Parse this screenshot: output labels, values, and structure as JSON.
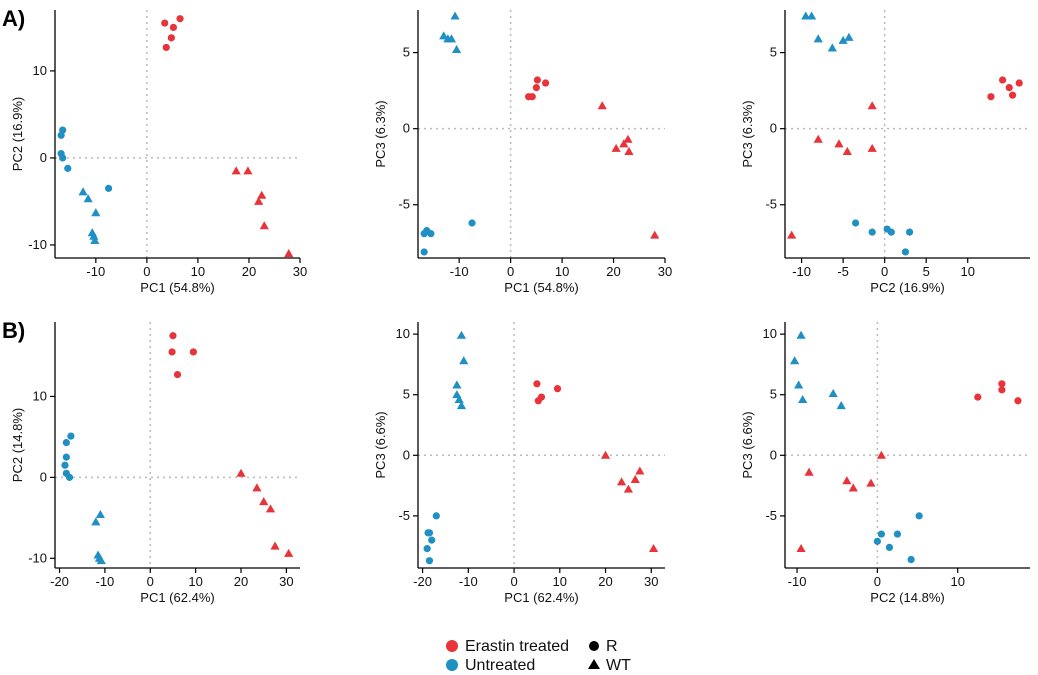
{
  "panels": [
    {
      "label": "A)",
      "row": 0
    },
    {
      "label": "B)",
      "row": 1
    }
  ],
  "colors": {
    "erastin": "#e8333a",
    "untreated": "#1f8fc4",
    "axis": "#000000",
    "ref_line": "#bbbbbb"
  },
  "legend": {
    "color_entries": [
      {
        "label": "Erastin treated",
        "color": "#e8333a"
      },
      {
        "label": "Untreated",
        "color": "#1f8fc4"
      }
    ],
    "shape_entries": [
      {
        "label": "R",
        "shape": "circle"
      },
      {
        "label": "WT",
        "shape": "triangle"
      }
    ]
  },
  "chart_data": [
    {
      "type": "scatter",
      "row": 0,
      "col": 0,
      "xlabel": "PC1 (54.8%)",
      "ylabel": "PC2 (16.9%)",
      "xlim": [
        -18,
        30
      ],
      "ylim": [
        -11.5,
        17
      ],
      "xticks": [
        -10,
        0,
        10,
        20,
        30
      ],
      "yticks": [
        -10,
        0,
        10
      ],
      "series": [
        {
          "name": "Erastin treated R",
          "group": "erastin",
          "shape": "circle",
          "points": [
            [
              3.5,
              15.5
            ],
            [
              5.2,
              15
            ],
            [
              6.5,
              16
            ],
            [
              3.8,
              12.7
            ],
            [
              4.8,
              13.8
            ]
          ]
        },
        {
          "name": "Erastin treated WT",
          "group": "erastin",
          "shape": "triangle",
          "points": [
            [
              17.5,
              -1.5
            ],
            [
              19.8,
              -1.5
            ],
            [
              22.5,
              -4.3
            ],
            [
              21.9,
              -5
            ],
            [
              23,
              -7.8
            ],
            [
              27.8,
              -11
            ]
          ]
        },
        {
          "name": "Untreated R",
          "group": "untreated",
          "shape": "circle",
          "points": [
            [
              -16.5,
              3.2
            ],
            [
              -16.8,
              2.6
            ],
            [
              -16.8,
              0.5
            ],
            [
              -16.5,
              0
            ],
            [
              -15.5,
              -1.2
            ],
            [
              -7.5,
              -3.5
            ]
          ]
        },
        {
          "name": "Untreated WT",
          "group": "untreated",
          "shape": "triangle",
          "points": [
            [
              -12.5,
              -3.9
            ],
            [
              -11.5,
              -4.7
            ],
            [
              -10,
              -6.3
            ],
            [
              -10.7,
              -8.6
            ],
            [
              -10.4,
              -9
            ],
            [
              -10.2,
              -9.5
            ]
          ]
        }
      ]
    },
    {
      "type": "scatter",
      "row": 0,
      "col": 1,
      "xlabel": "PC1 (54.8%)",
      "ylabel": "PC3 (6.3%)",
      "xlim": [
        -18,
        30
      ],
      "ylim": [
        -8.5,
        7.8
      ],
      "xticks": [
        -10,
        0,
        10,
        20,
        30
      ],
      "yticks": [
        -5,
        0,
        5
      ],
      "series": [
        {
          "name": "Erastin treated R",
          "group": "erastin",
          "shape": "circle",
          "points": [
            [
              3.5,
              2.1
            ],
            [
              4.2,
              2.1
            ],
            [
              5.2,
              3.2
            ],
            [
              5,
              2.7
            ],
            [
              6.8,
              3
            ]
          ]
        },
        {
          "name": "Erastin treated WT",
          "group": "erastin",
          "shape": "triangle",
          "points": [
            [
              17.8,
              1.5
            ],
            [
              20.5,
              -1.3
            ],
            [
              22,
              -1
            ],
            [
              22.8,
              -0.7
            ],
            [
              23,
              -1.5
            ],
            [
              28,
              -7
            ]
          ]
        },
        {
          "name": "Untreated R",
          "group": "untreated",
          "shape": "circle",
          "points": [
            [
              -16.8,
              -6.9
            ],
            [
              -16.3,
              -6.7
            ],
            [
              -15.5,
              -6.9
            ],
            [
              -16.8,
              -8.1
            ],
            [
              -7.5,
              -6.2
            ]
          ]
        },
        {
          "name": "Untreated WT",
          "group": "untreated",
          "shape": "triangle",
          "points": [
            [
              -13,
              6.1
            ],
            [
              -12.2,
              5.9
            ],
            [
              -11.5,
              5.9
            ],
            [
              -10.5,
              5.2
            ],
            [
              -10.8,
              7.4
            ]
          ]
        }
      ]
    },
    {
      "type": "scatter",
      "row": 0,
      "col": 2,
      "xlabel": "PC2 (16.9%)",
      "ylabel": "PC3 (6.3%)",
      "xlim": [
        -12,
        17.5
      ],
      "ylim": [
        -8.5,
        7.8
      ],
      "xticks": [
        -10,
        -5,
        0,
        5,
        10
      ],
      "yticks": [
        -5,
        0,
        5
      ],
      "series": [
        {
          "name": "Erastin treated R",
          "group": "erastin",
          "shape": "circle",
          "points": [
            [
              12.8,
              2.1
            ],
            [
              14.2,
              3.2
            ],
            [
              15,
              2.7
            ],
            [
              15.4,
              2.2
            ],
            [
              16.2,
              3
            ]
          ]
        },
        {
          "name": "Erastin treated WT",
          "group": "erastin",
          "shape": "triangle",
          "points": [
            [
              -1.5,
              1.5
            ],
            [
              -8,
              -0.7
            ],
            [
              -5.5,
              -1
            ],
            [
              -4.5,
              -1.5
            ],
            [
              -1.5,
              -1.3
            ],
            [
              -11.2,
              -7
            ]
          ]
        },
        {
          "name": "Untreated R",
          "group": "untreated",
          "shape": "circle",
          "points": [
            [
              -3.5,
              -6.2
            ],
            [
              -1.5,
              -6.8
            ],
            [
              0.3,
              -6.6
            ],
            [
              0.8,
              -6.8
            ],
            [
              2.5,
              -8.1
            ],
            [
              3,
              -6.8
            ]
          ]
        },
        {
          "name": "Untreated WT",
          "group": "untreated",
          "shape": "triangle",
          "points": [
            [
              -9.5,
              7.4
            ],
            [
              -8.8,
              7.4
            ],
            [
              -8,
              5.9
            ],
            [
              -6.3,
              5.3
            ],
            [
              -5,
              5.8
            ],
            [
              -4.3,
              6
            ]
          ]
        }
      ]
    },
    {
      "type": "scatter",
      "row": 1,
      "col": 0,
      "xlabel": "PC1 (62.4%)",
      "ylabel": "PC2 (14.8%)",
      "xlim": [
        -21,
        33
      ],
      "ylim": [
        -11.2,
        19.2
      ],
      "xticks": [
        -20,
        -10,
        0,
        10,
        20,
        30
      ],
      "yticks": [
        -10,
        0,
        10
      ],
      "series": [
        {
          "name": "Erastin treated R",
          "group": "erastin",
          "shape": "circle",
          "points": [
            [
              5,
              17.5
            ],
            [
              4.8,
              15.5
            ],
            [
              9.5,
              15.5
            ],
            [
              6,
              12.7
            ]
          ]
        },
        {
          "name": "Erastin treated WT",
          "group": "erastin",
          "shape": "triangle",
          "points": [
            [
              20,
              0.5
            ],
            [
              23.5,
              -1.3
            ],
            [
              25,
              -3
            ],
            [
              26.5,
              -3.9
            ],
            [
              27.5,
              -8.5
            ],
            [
              30.5,
              -9.4
            ]
          ]
        },
        {
          "name": "Untreated R",
          "group": "untreated",
          "shape": "circle",
          "points": [
            [
              -18.5,
              4.3
            ],
            [
              -17.5,
              5.1
            ],
            [
              -18.5,
              2.5
            ],
            [
              -18.8,
              1.5
            ],
            [
              -18.5,
              0.5
            ],
            [
              -17.8,
              0
            ]
          ]
        },
        {
          "name": "Untreated WT",
          "group": "untreated",
          "shape": "triangle",
          "points": [
            [
              -11,
              -4.6
            ],
            [
              -12,
              -5.5
            ],
            [
              -11.5,
              -9.6
            ],
            [
              -11.2,
              -10
            ],
            [
              -10.8,
              -10.3
            ]
          ]
        }
      ]
    },
    {
      "type": "scatter",
      "row": 1,
      "col": 1,
      "xlabel": "PC1 (62.4%)",
      "ylabel": "PC3 (6.6%)",
      "xlim": [
        -21,
        33
      ],
      "ylim": [
        -9.3,
        11
      ],
      "xticks": [
        -20,
        -10,
        0,
        10,
        20,
        30
      ],
      "yticks": [
        -5,
        0,
        5,
        10
      ],
      "series": [
        {
          "name": "Erastin treated R",
          "group": "erastin",
          "shape": "circle",
          "points": [
            [
              5,
              5.9
            ],
            [
              5.3,
              4.5
            ],
            [
              6,
              4.8
            ],
            [
              9.5,
              5.5
            ]
          ]
        },
        {
          "name": "Erastin treated WT",
          "group": "erastin",
          "shape": "triangle",
          "points": [
            [
              20,
              0
            ],
            [
              23.5,
              -2.2
            ],
            [
              25,
              -2.8
            ],
            [
              26.5,
              -2
            ],
            [
              27.5,
              -1.3
            ],
            [
              30.5,
              -7.7
            ]
          ]
        },
        {
          "name": "Untreated R",
          "group": "untreated",
          "shape": "circle",
          "points": [
            [
              -17,
              -5
            ],
            [
              -18.5,
              -6.4
            ],
            [
              -18,
              -7
            ],
            [
              -19,
              -7.7
            ],
            [
              -18.5,
              -8.7
            ],
            [
              -18.8,
              -6.4
            ]
          ]
        },
        {
          "name": "Untreated WT",
          "group": "untreated",
          "shape": "triangle",
          "points": [
            [
              -11.5,
              9.9
            ],
            [
              -11,
              7.8
            ],
            [
              -12.5,
              5.8
            ],
            [
              -12.5,
              5
            ],
            [
              -12,
              4.6
            ],
            [
              -11.5,
              4.1
            ]
          ]
        }
      ]
    },
    {
      "type": "scatter",
      "row": 1,
      "col": 2,
      "xlabel": "PC2 (14.8%)",
      "ylabel": "PC3 (6.6%)",
      "xlim": [
        -11.5,
        19
      ],
      "ylim": [
        -9.3,
        11
      ],
      "xticks": [
        -10,
        0,
        10
      ],
      "yticks": [
        -5,
        0,
        5,
        10
      ],
      "series": [
        {
          "name": "Erastin treated R",
          "group": "erastin",
          "shape": "circle",
          "points": [
            [
              12.5,
              4.8
            ],
            [
              15.5,
              5.4
            ],
            [
              15.5,
              5.9
            ],
            [
              17.5,
              4.5
            ]
          ]
        },
        {
          "name": "Erastin treated WT",
          "group": "erastin",
          "shape": "triangle",
          "points": [
            [
              0.5,
              0
            ],
            [
              -8.5,
              -1.4
            ],
            [
              -3.8,
              -2.1
            ],
            [
              -3,
              -2.7
            ],
            [
              -0.8,
              -2.3
            ],
            [
              -9.5,
              -7.7
            ]
          ]
        },
        {
          "name": "Untreated R",
          "group": "untreated",
          "shape": "circle",
          "points": [
            [
              0.5,
              -6.5
            ],
            [
              0,
              -7.1
            ],
            [
              1.5,
              -7.6
            ],
            [
              2.5,
              -6.5
            ],
            [
              4.2,
              -8.6
            ],
            [
              5.2,
              -5
            ]
          ]
        },
        {
          "name": "Untreated WT",
          "group": "untreated",
          "shape": "triangle",
          "points": [
            [
              -9.5,
              9.9
            ],
            [
              -10.3,
              7.8
            ],
            [
              -9.8,
              5.8
            ],
            [
              -9.3,
              4.6
            ],
            [
              -5.5,
              5.1
            ],
            [
              -4.5,
              4.1
            ]
          ]
        }
      ]
    }
  ]
}
